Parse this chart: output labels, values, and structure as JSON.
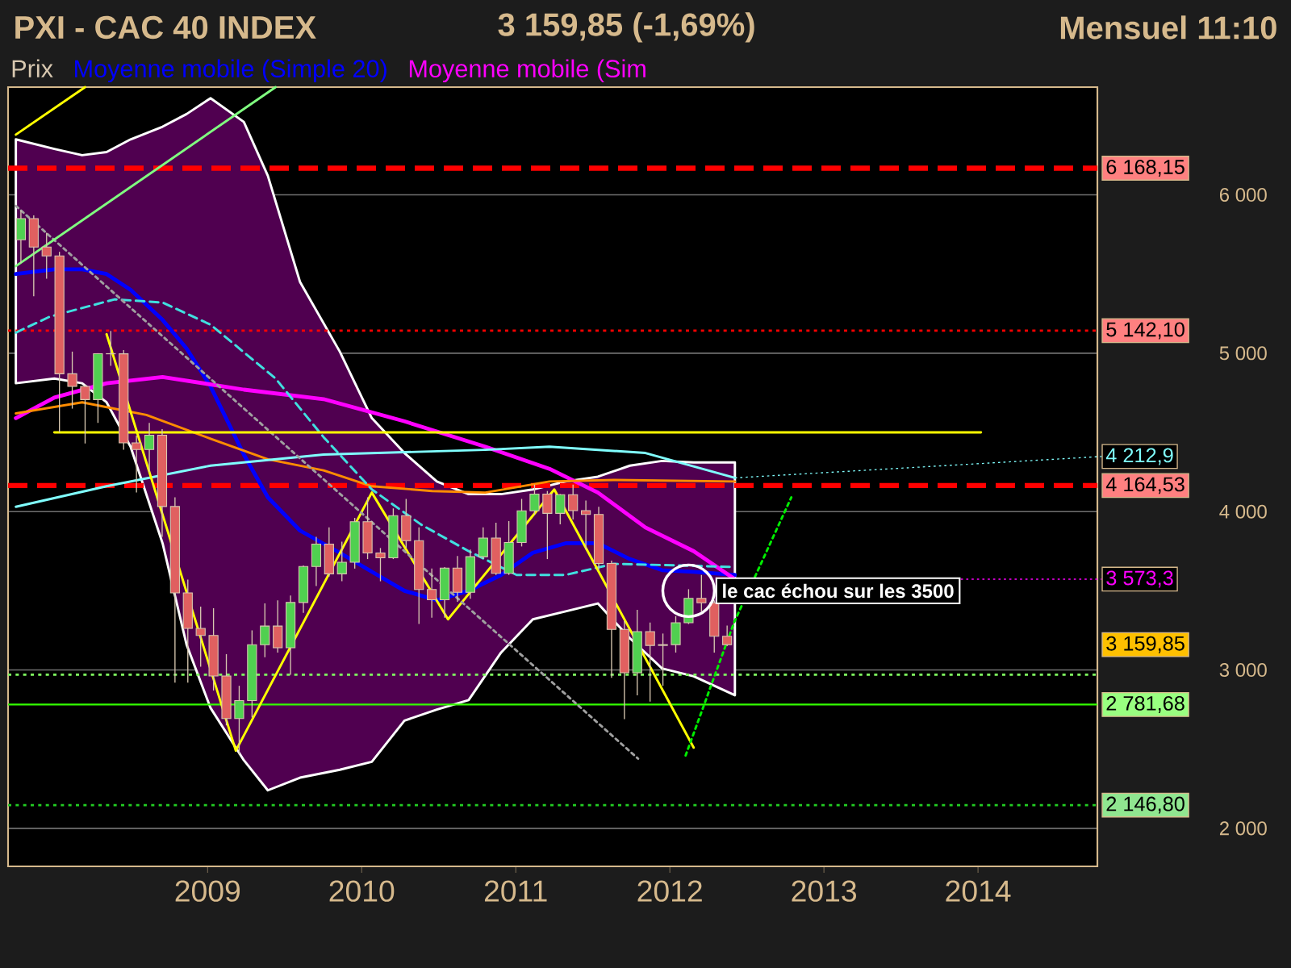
{
  "chart_data": {
    "type": "candlestick",
    "title": "PXI - CAC 40 INDEX",
    "subtitle": "3 159,85 (-1,69%)",
    "annotations": [
      "Mensuel  11:10",
      {
        "text": "le cac échou sur les  3500",
        "x": "2012-02-15",
        "y": 3500
      }
    ],
    "xlim": [
      "2007-09-15",
      "2014-10-10"
    ],
    "xticks": [
      "2009",
      "2010",
      "2011",
      "2012",
      "2013",
      "2014"
    ],
    "ylim": [
      1760,
      6680
    ],
    "yticks": [
      {
        "value": 2000,
        "label": "2 000"
      },
      {
        "value": 3000,
        "label": "3 000"
      },
      {
        "value": 4000,
        "label": "4 000"
      },
      {
        "value": 5000,
        "label": "5 000"
      },
      {
        "value": 6000,
        "label": "6 000"
      }
    ],
    "grid": "y",
    "legend": "top left",
    "ref_lines": [
      {
        "axis": "y",
        "value": 6168.15,
        "label": "6 168,15",
        "color": "#ff0000",
        "line_style": "dashed"
      },
      {
        "axis": "y",
        "value": 5142.1,
        "label": "5 142,10",
        "color": "#ff0000",
        "line_style": "dotted"
      },
      {
        "axis": "y",
        "value": 4164.53,
        "label": "4 164,53",
        "color": "#ff0000",
        "line_style": "dashed"
      },
      {
        "axis": "y",
        "value": 2970,
        "color": "#80ff60",
        "line_style": "dotted"
      },
      {
        "axis": "y",
        "value": 2781.68,
        "label": "2 781,68",
        "color": "#33ff00",
        "line_style": "solid"
      },
      {
        "axis": "y",
        "value": 2146.8,
        "label": "2 146,80",
        "color": "#22cc22",
        "line_style": "dotted"
      }
    ],
    "series": [
      {
        "name": "Prix",
        "color": "#d8c8b0",
        "x": [
          "2007-10-15",
          "2007-11-15",
          "2007-12-15",
          "2008-01-15",
          "2008-02-15",
          "2008-03-15",
          "2008-04-15",
          "2008-05-15",
          "2008-06-15",
          "2008-07-15",
          "2008-08-15",
          "2008-09-15",
          "2008-10-15",
          "2008-11-15",
          "2008-12-15",
          "2009-01-15",
          "2009-02-15",
          "2009-03-15",
          "2009-04-15",
          "2009-05-15",
          "2009-06-15",
          "2009-07-15",
          "2009-08-15",
          "2009-09-15",
          "2009-10-15",
          "2009-11-15",
          "2009-12-15",
          "2010-01-15",
          "2010-02-15",
          "2010-03-15",
          "2010-04-15",
          "2010-05-15",
          "2010-06-15",
          "2010-07-15",
          "2010-08-15",
          "2010-09-15",
          "2010-10-15",
          "2010-11-15",
          "2010-12-15",
          "2011-01-15",
          "2011-02-15",
          "2011-03-15",
          "2011-04-15",
          "2011-05-15",
          "2011-06-15",
          "2011-07-15",
          "2011-08-15",
          "2011-09-15",
          "2011-10-15",
          "2011-11-15",
          "2011-12-15",
          "2012-01-15",
          "2012-02-15",
          "2012-03-15",
          "2012-04-15",
          "2012-05-15"
        ],
        "ohlc": [
          [
            5716,
            5900,
            5570,
            5850
          ],
          [
            5850,
            5870,
            5360,
            5670
          ],
          [
            5670,
            5760,
            5470,
            5614
          ],
          [
            5614,
            5640,
            4500,
            4870
          ],
          [
            4870,
            5010,
            4650,
            4790
          ],
          [
            4790,
            4800,
            4430,
            4707
          ],
          [
            4707,
            5000,
            4560,
            4997
          ],
          [
            4997,
            5140,
            4920,
            4996
          ],
          [
            4996,
            5020,
            4390,
            4434
          ],
          [
            4434,
            4480,
            4120,
            4392
          ],
          [
            4392,
            4560,
            4250,
            4482
          ],
          [
            4482,
            4520,
            3840,
            4032
          ],
          [
            4032,
            4090,
            2920,
            3487
          ],
          [
            3487,
            3570,
            2920,
            3262
          ],
          [
            3262,
            3400,
            3020,
            3218
          ],
          [
            3218,
            3390,
            2870,
            2962
          ],
          [
            2962,
            3100,
            2650,
            2693
          ],
          [
            2693,
            2900,
            2465,
            2807
          ],
          [
            2807,
            3250,
            2700,
            3159
          ],
          [
            3159,
            3420,
            3080,
            3277
          ],
          [
            3277,
            3440,
            3110,
            3140
          ],
          [
            3140,
            3470,
            2970,
            3426
          ],
          [
            3426,
            3660,
            3360,
            3653
          ],
          [
            3653,
            3840,
            3530,
            3795
          ],
          [
            3795,
            3900,
            3590,
            3607
          ],
          [
            3607,
            3810,
            3560,
            3680
          ],
          [
            3680,
            3960,
            3640,
            3936
          ],
          [
            3936,
            4090,
            3700,
            3739
          ],
          [
            3739,
            3770,
            3560,
            3708
          ],
          [
            3708,
            4020,
            3700,
            3974
          ],
          [
            3974,
            4080,
            3770,
            3816
          ],
          [
            3816,
            3900,
            3290,
            3508
          ],
          [
            3508,
            3640,
            3330,
            3443
          ],
          [
            3443,
            3650,
            3330,
            3643
          ],
          [
            3643,
            3720,
            3430,
            3490
          ],
          [
            3490,
            3760,
            3450,
            3715
          ],
          [
            3715,
            3900,
            3700,
            3833
          ],
          [
            3833,
            3930,
            3600,
            3610
          ],
          [
            3610,
            3940,
            3600,
            3805
          ],
          [
            3805,
            4080,
            3780,
            4005
          ],
          [
            4005,
            4170,
            3980,
            4110
          ],
          [
            4110,
            4130,
            3700,
            3989
          ],
          [
            3989,
            4110,
            3920,
            4107
          ],
          [
            4107,
            4170,
            3950,
            4006
          ],
          [
            4006,
            4070,
            3760,
            3982
          ],
          [
            3982,
            4030,
            3630,
            3672
          ],
          [
            3672,
            3690,
            2950,
            3256
          ],
          [
            3256,
            3310,
            2690,
            2982
          ],
          [
            2982,
            3380,
            2840,
            3242
          ],
          [
            3242,
            3300,
            2800,
            3155
          ],
          [
            3155,
            3230,
            2900,
            3160
          ],
          [
            3160,
            3340,
            3110,
            3298
          ],
          [
            3298,
            3510,
            3290,
            3452
          ],
          [
            3452,
            3600,
            3370,
            3424
          ],
          [
            3424,
            3440,
            3110,
            3213
          ],
          [
            3213,
            3280,
            3150,
            3159.85
          ]
        ],
        "value_labels": [
          null,
          null,
          null,
          null,
          null,
          null,
          null,
          null,
          null,
          null,
          null,
          null,
          null,
          null,
          null,
          null,
          null,
          null,
          null,
          null,
          null,
          null,
          null,
          null,
          null,
          null,
          null,
          null,
          null,
          null,
          null,
          null,
          null,
          null,
          null,
          null,
          null,
          null,
          null,
          null,
          null,
          null,
          null,
          null,
          null,
          null,
          null,
          null,
          null,
          null,
          null,
          null,
          null,
          null,
          null,
          "3 159,85"
        ]
      },
      {
        "type": "line",
        "name": "Moyenne mobile (Simple 20)",
        "color": "#0000ff",
        "x": [
          "2007-10-03",
          "2008-01-03",
          "2008-03-08",
          "2008-05-05",
          "2008-07-01",
          "2008-09-16",
          "2008-11-12",
          "2009-01-08",
          "2009-03-26",
          "2009-05-22",
          "2009-08-07",
          "2009-11-10",
          "2010-01-25",
          "2010-04-11",
          "2010-06-27",
          "2010-09-11",
          "2010-11-27",
          "2011-02-11",
          "2011-04-28",
          "2011-07-13",
          "2011-09-28",
          "2011-12-13",
          "2012-02-27",
          "2012-06-03"
        ],
        "values": [
          5500,
          5530,
          5530,
          5500,
          5400,
          5210,
          5030,
          4790,
          4360,
          4090,
          3880,
          3740,
          3620,
          3500,
          3440,
          3500,
          3600,
          3740,
          3800,
          3800,
          3700,
          3630,
          3620,
          3600
        ],
        "upper": [
          6350,
          6290,
          6250,
          6270,
          6350,
          6430,
          6510,
          6610,
          6460,
          6120,
          5450,
          5010,
          4590,
          4370,
          4190,
          4110,
          4110,
          4140,
          4190,
          4220,
          4290,
          4320,
          4310,
          4310
        ],
        "lower": [
          4810,
          4840,
          4810,
          4690,
          4410,
          3800,
          3160,
          2760,
          2430,
          2240,
          2320,
          2370,
          2420,
          2680,
          2750,
          2810,
          3110,
          3320,
          3370,
          3420,
          3200,
          3010,
          2960,
          2840
        ]
      },
      {
        "type": "line",
        "name": "Moyenne mobile (Sim",
        "color": "#ff00ff",
        "x": [
          "2007-10-03",
          "2008-01-03",
          "2008-05-05",
          "2008-09-16",
          "2009-03-26",
          "2009-10-02",
          "2010-04-11",
          "2010-10-20",
          "2011-03-20",
          "2011-07-13",
          "2011-11-04",
          "2012-02-27",
          "2012-06-03"
        ],
        "values": [
          4590,
          4720,
          4810,
          4850,
          4770,
          4710,
          4570,
          4410,
          4270,
          4120,
          3900,
          3750,
          3573.3
        ],
        "value_labels": [
          null,
          null,
          null,
          null,
          null,
          null,
          null,
          null,
          null,
          null,
          null,
          null,
          "3 573,3"
        ]
      },
      {
        "type": "line",
        "color": "#ff8c00",
        "x": [
          "2007-10-03",
          "2008-03-08",
          "2008-08-08",
          "2009-01-08",
          "2009-05-22",
          "2009-10-02",
          "2010-01-25",
          "2010-06-16",
          "2010-10-20",
          "2011-03-20",
          "2011-08-20",
          "2012-06-03"
        ],
        "values": [
          4620,
          4690,
          4610,
          4460,
          4330,
          4260,
          4160,
          4130,
          4120,
          4190,
          4200,
          4190
        ]
      },
      {
        "type": "line",
        "color": "#40e0e0",
        "line_style": "dashed",
        "x": [
          "2007-10-03",
          "2007-12-22",
          "2008-05-24",
          "2008-09-16",
          "2009-01-08",
          "2009-06-10",
          "2009-10-02",
          "2010-01-25",
          "2010-05-19",
          "2010-09-11",
          "2011-01-03",
          "2011-04-28",
          "2011-08-20",
          "2012-01-20",
          "2012-06-03"
        ],
        "values": [
          5130,
          5230,
          5340,
          5320,
          5180,
          4840,
          4470,
          4140,
          3920,
          3750,
          3600,
          3600,
          3670,
          3660,
          3650
        ]
      },
      {
        "type": "line",
        "color": "#80ffff",
        "x": [
          "2007-10-03",
          "2008-05-05",
          "2009-01-08",
          "2009-10-02",
          "2010-10-20",
          "2011-03-20",
          "2011-11-04",
          "2012-06-03"
        ],
        "values": [
          4030,
          4160,
          4290,
          4360,
          4390,
          4410,
          4370,
          4212.9
        ],
        "value_labels": [
          null,
          null,
          null,
          null,
          null,
          null,
          null,
          "4 212,9"
        ]
      },
      {
        "type": "line",
        "color": "#ffff00",
        "x": [
          "2008-05-05",
          "2009-03-07",
          "2010-01-25",
          "2010-07-23",
          "2011-04-01",
          "2012-02-27"
        ],
        "values": [
          5120,
          2490,
          4120,
          3320,
          4140,
          2510
        ]
      },
      {
        "type": "line",
        "color": "#a0a0a0",
        "line_style": "dotted",
        "x": [
          "2007-10-03",
          "2011-10-17"
        ],
        "values": [
          5930,
          2440
        ]
      },
      {
        "type": "line",
        "color": "#80ff80",
        "x": [
          "2007-10-03",
          "2009-06-10"
        ],
        "values": [
          5550,
          6680
        ]
      },
      {
        "type": "line",
        "color": "#ffff00",
        "x": [
          "2007-10-03",
          "2008-03-15"
        ],
        "values": [
          6380,
          6680
        ]
      },
      {
        "type": "line",
        "color": "#ffff00",
        "x": [
          "2008-01-03",
          "2014-01-08"
        ],
        "values": [
          4500,
          4500
        ]
      },
      {
        "type": "line",
        "color": "#00ee00",
        "line_style": "dotted",
        "x": [
          "2012-02-08",
          "2012-06-01",
          "2012-10-15"
        ],
        "values": [
          2460,
          3300,
          4090
        ]
      }
    ]
  }
}
